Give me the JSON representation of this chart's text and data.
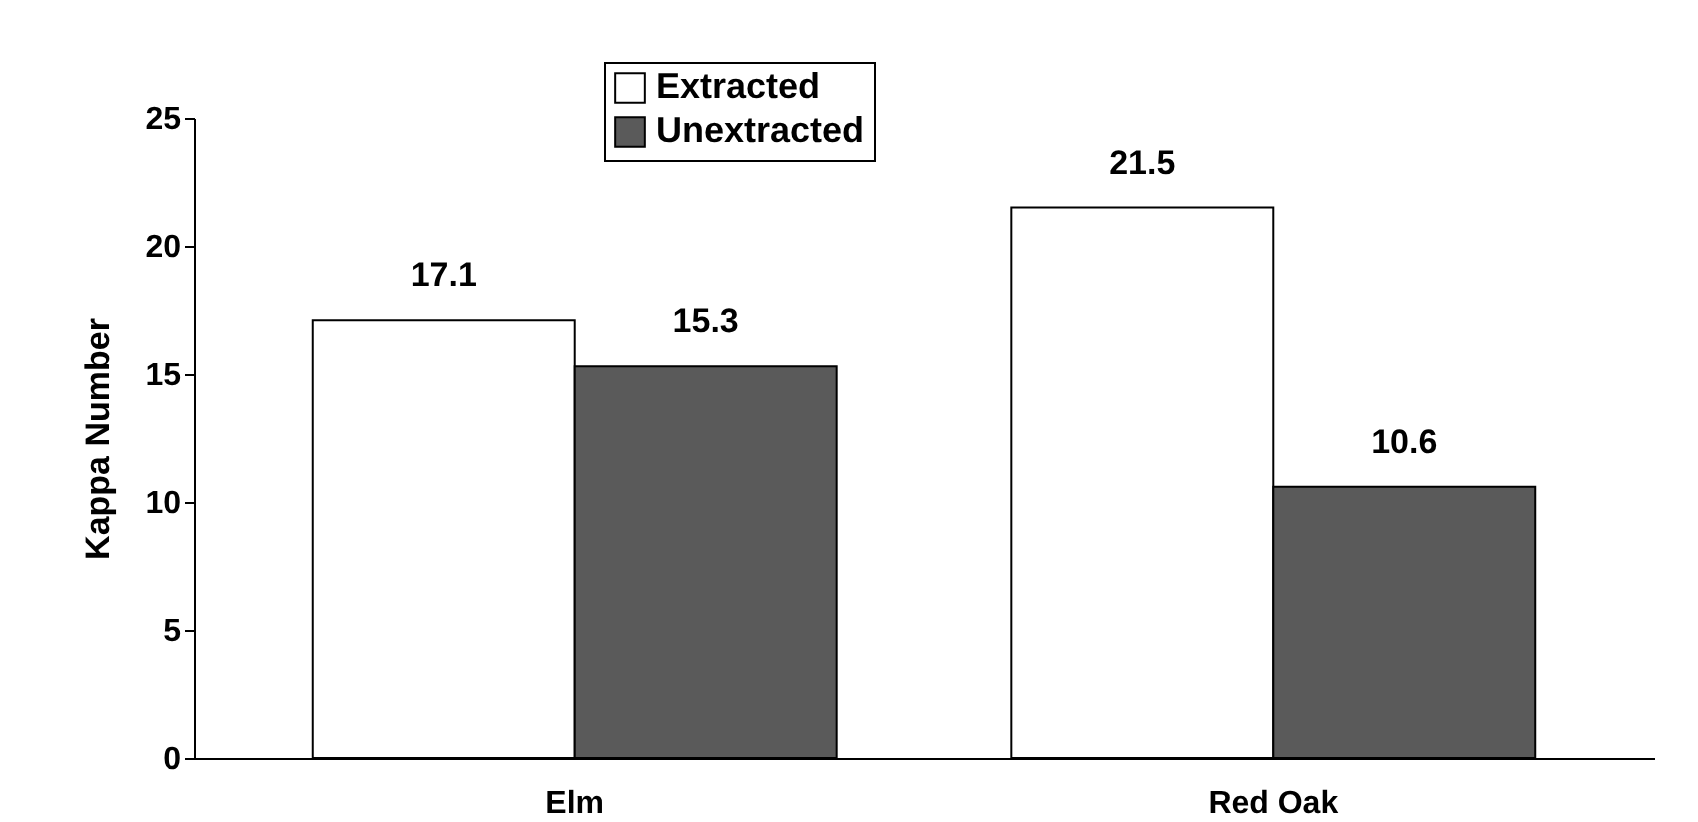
{
  "chart_data": {
    "type": "bar",
    "ylabel": "Kappa Number",
    "categories": [
      "Elm",
      "Red Oak"
    ],
    "series": [
      {
        "name": "Extracted",
        "color": "#ffffff",
        "values": [
          17.1,
          21.5
        ]
      },
      {
        "name": "Unextracted",
        "color": "#5a5a5a",
        "values": [
          15.3,
          10.6
        ]
      }
    ],
    "ylim": [
      0,
      25
    ],
    "yticks": [
      0,
      5,
      10,
      15,
      20,
      25
    ],
    "grid": false,
    "legend": "top",
    "data_labels": true
  }
}
